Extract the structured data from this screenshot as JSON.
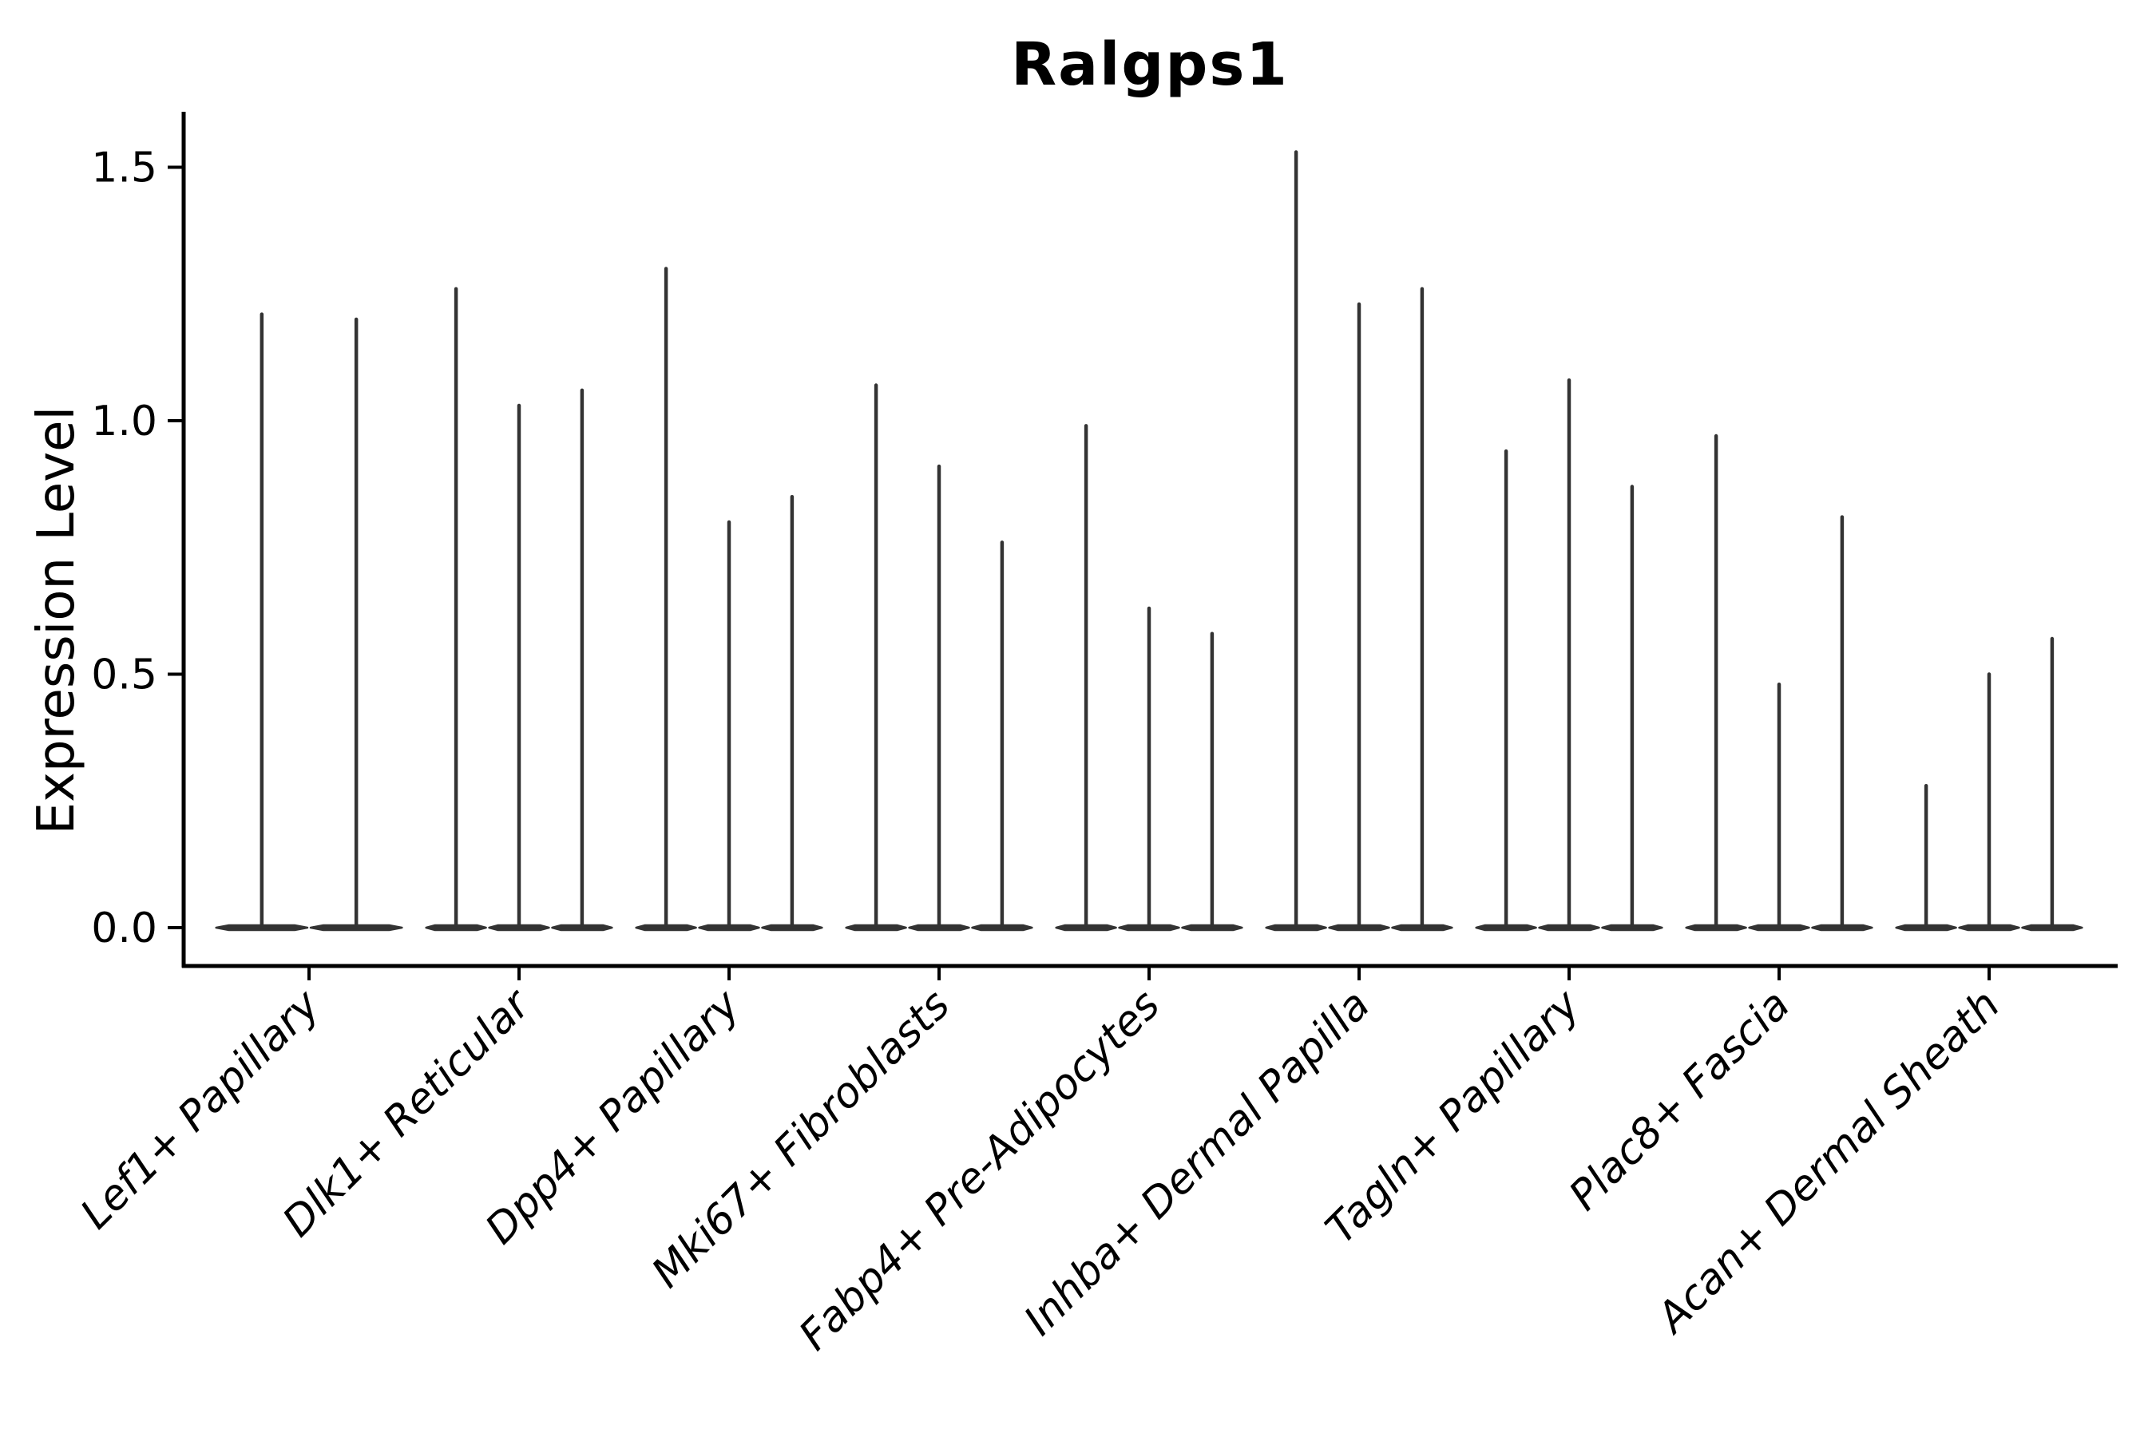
{
  "chart_data": {
    "type": "violin",
    "title": "Ralgps1",
    "ylabel": "Expression Level",
    "xlabel": "",
    "ylim": [
      0.0,
      1.61
    ],
    "yticks": [
      0.0,
      0.5,
      1.0,
      1.5
    ],
    "ytick_labels": [
      "0.0",
      "0.5",
      "1.0",
      "1.5"
    ],
    "grid": false,
    "legend_position": "none",
    "categories": [
      "Lef1+ Papillary",
      "Dlk1+ Reticular",
      "Dpp4+ Papillary",
      "Mki67+ Fibroblasts",
      "Fabp4+ Pre-Adipocytes",
      "Inhba+ Dermal Papilla",
      "Tagln+ Papillary",
      "Plac8+ Fascia",
      "Acan+ Dermal Sheath"
    ],
    "groups": [
      {
        "category": "Lef1+ Papillary",
        "violin_max_values": [
          1.21,
          1.2
        ]
      },
      {
        "category": "Dlk1+ Reticular",
        "violin_max_values": [
          1.26,
          1.03,
          1.06
        ]
      },
      {
        "category": "Dpp4+ Papillary",
        "violin_max_values": [
          1.3,
          0.8,
          0.85
        ]
      },
      {
        "category": "Mki67+ Fibroblasts",
        "violin_max_values": [
          1.07,
          0.91,
          0.76
        ]
      },
      {
        "category": "Fabp4+ Pre-Adipocytes",
        "violin_max_values": [
          0.99,
          0.63,
          0.58
        ]
      },
      {
        "category": "Inhba+ Dermal Papilla",
        "violin_max_values": [
          1.53,
          1.23,
          1.26
        ]
      },
      {
        "category": "Tagln+ Papillary",
        "violin_max_values": [
          0.94,
          1.08,
          0.87
        ]
      },
      {
        "category": "Plac8+ Fascia",
        "violin_max_values": [
          0.97,
          0.48,
          0.81
        ]
      },
      {
        "category": "Acan+ Dermal Sheath",
        "violin_max_values": [
          0.28,
          0.5,
          0.57
        ]
      }
    ],
    "violin_description": "Each violin is a near-zero-width distribution concentrated at 0 with a thin spike reaching its maximum expression value",
    "colors": {
      "violin": "#333333",
      "axis": "#000000",
      "background": "#ffffff",
      "text": "#000000"
    }
  }
}
